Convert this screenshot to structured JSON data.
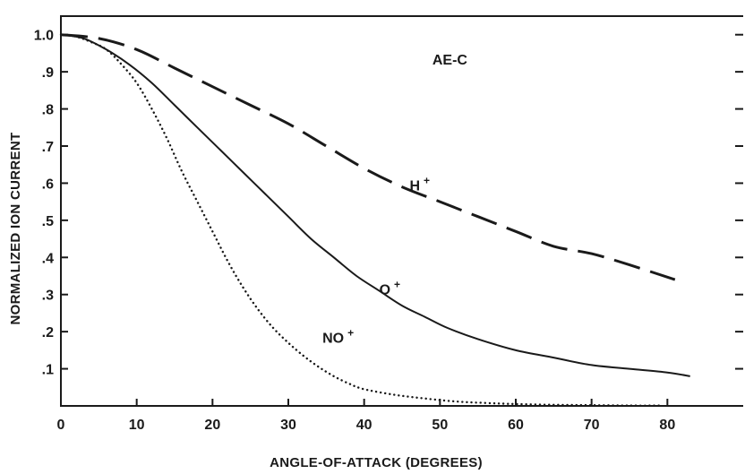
{
  "chart_data": {
    "type": "line",
    "title": "",
    "xlabel": "ANGLE-OF-ATTACK (DEGREES)",
    "ylabel": "NORMALIZED ION CURRENT",
    "xlim": [
      0,
      90
    ],
    "ylim": [
      0,
      1.05
    ],
    "x_ticks": [
      0,
      10,
      20,
      30,
      40,
      50,
      60,
      70,
      80
    ],
    "x_tick_labels": [
      "0",
      "10",
      "20",
      "30",
      "40",
      "50",
      "60",
      "70",
      "80"
    ],
    "y_ticks": [
      0.1,
      0.2,
      0.3,
      0.4,
      0.5,
      0.6,
      0.7,
      0.8,
      0.9,
      1.0
    ],
    "y_tick_labels": [
      ".1",
      ".2",
      ".3",
      ".4",
      ".5",
      ".6",
      ".7",
      ".8",
      ".9",
      "1.0"
    ],
    "grid": false,
    "legend": "none",
    "annotations": [
      {
        "text": "AE-C",
        "x": 49,
        "y": 0.92
      },
      {
        "text": "H",
        "sup": "+",
        "x": 46,
        "y": 0.58
      },
      {
        "text": "O",
        "sup": "+",
        "x": 42,
        "y": 0.3
      },
      {
        "text": "NO",
        "sup": "+",
        "x": 34.5,
        "y": 0.17
      }
    ],
    "series": [
      {
        "label": "H+",
        "style": "dashed",
        "x": [
          0,
          5,
          10,
          15,
          20,
          25,
          30,
          35,
          40,
          45,
          50,
          55,
          60,
          65,
          70,
          75,
          81
        ],
        "y": [
          1.0,
          0.99,
          0.96,
          0.91,
          0.86,
          0.81,
          0.76,
          0.7,
          0.64,
          0.59,
          0.55,
          0.51,
          0.47,
          0.43,
          0.41,
          0.38,
          0.34
        ]
      },
      {
        "label": "O+",
        "style": "solid",
        "x": [
          0,
          3,
          6,
          9,
          12,
          15,
          18,
          21,
          24,
          27,
          30,
          33,
          36,
          39,
          42,
          45,
          48,
          51,
          55,
          60,
          65,
          70,
          75,
          80,
          83
        ],
        "y": [
          1.0,
          0.99,
          0.96,
          0.92,
          0.87,
          0.81,
          0.75,
          0.69,
          0.63,
          0.57,
          0.51,
          0.45,
          0.4,
          0.35,
          0.31,
          0.27,
          0.24,
          0.21,
          0.18,
          0.15,
          0.13,
          0.11,
          0.1,
          0.09,
          0.08
        ]
      },
      {
        "label": "NO+",
        "style": "dotted",
        "x": [
          0,
          2,
          4,
          6,
          8,
          10,
          12,
          14,
          16,
          18,
          20,
          22,
          24,
          26,
          28,
          30,
          32,
          34,
          36,
          38,
          40,
          44,
          48,
          52,
          56,
          60,
          65,
          70,
          75,
          79
        ],
        "y": [
          1.0,
          0.995,
          0.98,
          0.96,
          0.92,
          0.87,
          0.8,
          0.72,
          0.63,
          0.55,
          0.47,
          0.39,
          0.32,
          0.26,
          0.21,
          0.17,
          0.135,
          0.105,
          0.08,
          0.06,
          0.045,
          0.03,
          0.02,
          0.012,
          0.008,
          0.005,
          0.003,
          0.002,
          0.001,
          0.001
        ]
      }
    ]
  }
}
